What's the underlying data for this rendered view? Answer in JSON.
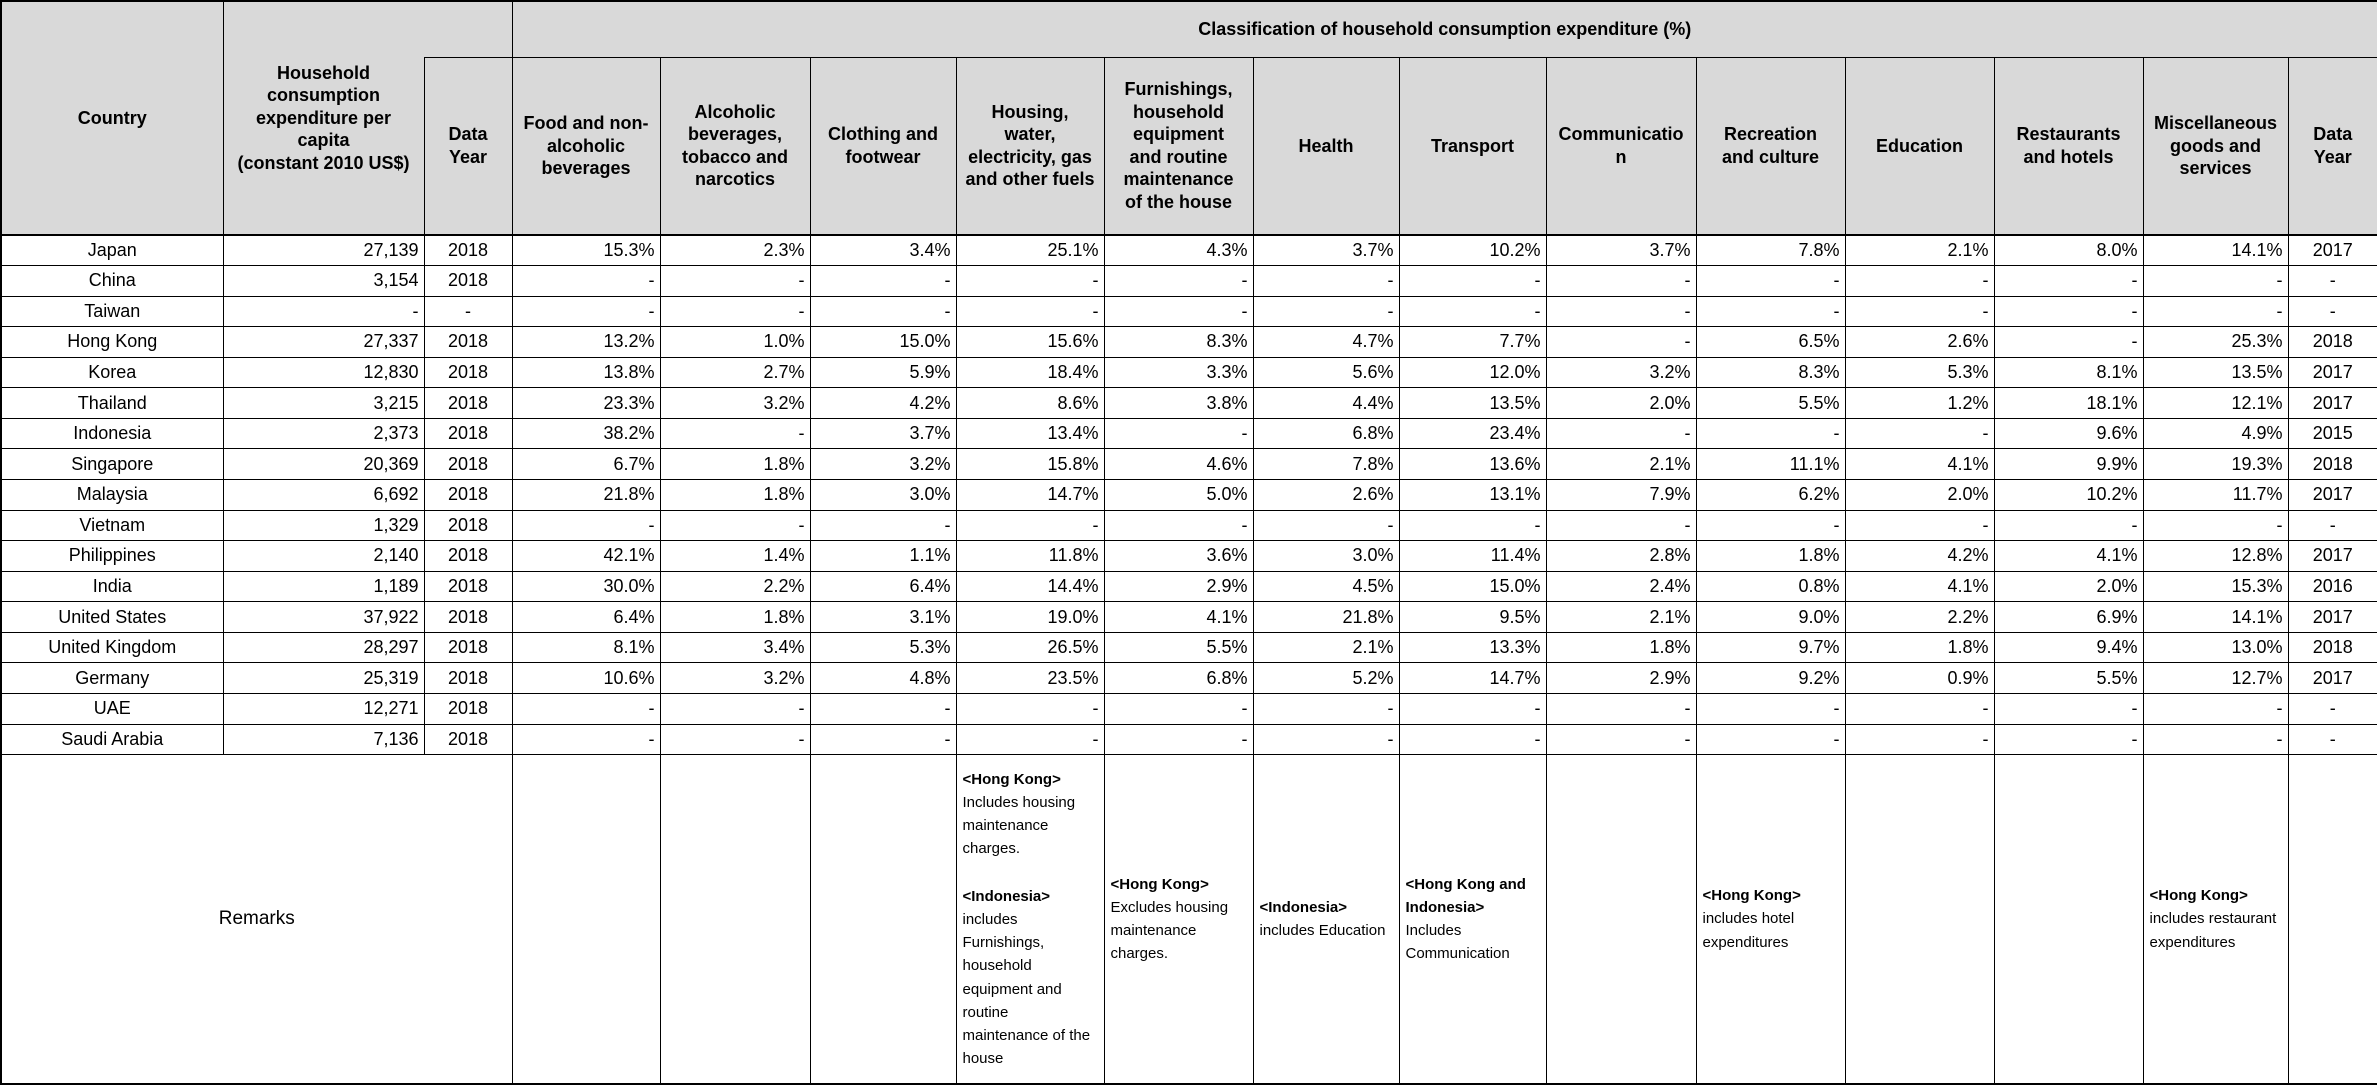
{
  "header": {
    "group_title": "Classification of household consumption expenditure  (%)",
    "country": "Country",
    "hce": "Household\nconsumption\nexpenditure per\ncapita\n(constant 2010 US$)",
    "data_year_first": "Data\nYear",
    "categories": [
      "Food and non-\nalcoholic\nbeverages",
      "Alcoholic\nbeverages,\ntobacco and\nnarcotics",
      "Clothing and\nfootwear",
      "Housing,\nwater,\nelectricity, gas\nand other fuels",
      "Furnishings,\nhousehold\nequipment\nand routine\nmaintenance\nof the house",
      "Health",
      "Transport",
      "Communicatio\nn",
      "Recreation\nand culture",
      "Education",
      "Restaurants\nand hotels",
      "Miscellaneous\ngoods and\nservices"
    ],
    "data_year_last": "Data\nYear"
  },
  "rows": [
    {
      "country": "Japan",
      "hce": "27,139",
      "year1": "2018",
      "values": [
        "15.3%",
        "2.3%",
        "3.4%",
        "25.1%",
        "4.3%",
        "3.7%",
        "10.2%",
        "3.7%",
        "7.8%",
        "2.1%",
        "8.0%",
        "14.1%"
      ],
      "year2": "2017"
    },
    {
      "country": "China",
      "hce": "3,154",
      "year1": "2018",
      "values": [
        "-",
        "-",
        "-",
        "-",
        "-",
        "-",
        "-",
        "-",
        "-",
        "-",
        "-",
        "-"
      ],
      "year2": "-"
    },
    {
      "country": "Taiwan",
      "hce": "-",
      "year1": "-",
      "values": [
        "-",
        "-",
        "-",
        "-",
        "-",
        "-",
        "-",
        "-",
        "-",
        "-",
        "-",
        "-"
      ],
      "year2": "-"
    },
    {
      "country": "Hong Kong",
      "hce": "27,337",
      "year1": "2018",
      "values": [
        "13.2%",
        "1.0%",
        "15.0%",
        "15.6%",
        "8.3%",
        "4.7%",
        "7.7%",
        "-",
        "6.5%",
        "2.6%",
        "-",
        "25.3%"
      ],
      "year2": "2018"
    },
    {
      "country": "Korea",
      "hce": "12,830",
      "year1": "2018",
      "values": [
        "13.8%",
        "2.7%",
        "5.9%",
        "18.4%",
        "3.3%",
        "5.6%",
        "12.0%",
        "3.2%",
        "8.3%",
        "5.3%",
        "8.1%",
        "13.5%"
      ],
      "year2": "2017"
    },
    {
      "country": "Thailand",
      "hce": "3,215",
      "year1": "2018",
      "values": [
        "23.3%",
        "3.2%",
        "4.2%",
        "8.6%",
        "3.8%",
        "4.4%",
        "13.5%",
        "2.0%",
        "5.5%",
        "1.2%",
        "18.1%",
        "12.1%"
      ],
      "year2": "2017"
    },
    {
      "country": "Indonesia",
      "hce": "2,373",
      "year1": "2018",
      "values": [
        "38.2%",
        "-",
        "3.7%",
        "13.4%",
        "-",
        "6.8%",
        "23.4%",
        "-",
        "-",
        "-",
        "9.6%",
        "4.9%"
      ],
      "year2": "2015"
    },
    {
      "country": "Singapore",
      "hce": "20,369",
      "year1": "2018",
      "values": [
        "6.7%",
        "1.8%",
        "3.2%",
        "15.8%",
        "4.6%",
        "7.8%",
        "13.6%",
        "2.1%",
        "11.1%",
        "4.1%",
        "9.9%",
        "19.3%"
      ],
      "year2": "2018"
    },
    {
      "country": "Malaysia",
      "hce": "6,692",
      "year1": "2018",
      "values": [
        "21.8%",
        "1.8%",
        "3.0%",
        "14.7%",
        "5.0%",
        "2.6%",
        "13.1%",
        "7.9%",
        "6.2%",
        "2.0%",
        "10.2%",
        "11.7%"
      ],
      "year2": "2017"
    },
    {
      "country": "Vietnam",
      "hce": "1,329",
      "year1": "2018",
      "values": [
        "-",
        "-",
        "-",
        "-",
        "-",
        "-",
        "-",
        "-",
        "-",
        "-",
        "-",
        "-"
      ],
      "year2": "-"
    },
    {
      "country": "Philippines",
      "hce": "2,140",
      "year1": "2018",
      "values": [
        "42.1%",
        "1.4%",
        "1.1%",
        "11.8%",
        "3.6%",
        "3.0%",
        "11.4%",
        "2.8%",
        "1.8%",
        "4.2%",
        "4.1%",
        "12.8%"
      ],
      "year2": "2017"
    },
    {
      "country": "India",
      "hce": "1,189",
      "year1": "2018",
      "values": [
        "30.0%",
        "2.2%",
        "6.4%",
        "14.4%",
        "2.9%",
        "4.5%",
        "15.0%",
        "2.4%",
        "0.8%",
        "4.1%",
        "2.0%",
        "15.3%"
      ],
      "year2": "2016"
    },
    {
      "country": "United States",
      "hce": "37,922",
      "year1": "2018",
      "values": [
        "6.4%",
        "1.8%",
        "3.1%",
        "19.0%",
        "4.1%",
        "21.8%",
        "9.5%",
        "2.1%",
        "9.0%",
        "2.2%",
        "6.9%",
        "14.1%"
      ],
      "year2": "2017"
    },
    {
      "country": "United Kingdom",
      "hce": "28,297",
      "year1": "2018",
      "values": [
        "8.1%",
        "3.4%",
        "5.3%",
        "26.5%",
        "5.5%",
        "2.1%",
        "13.3%",
        "1.8%",
        "9.7%",
        "1.8%",
        "9.4%",
        "13.0%"
      ],
      "year2": "2018"
    },
    {
      "country": "Germany",
      "hce": "25,319",
      "year1": "2018",
      "values": [
        "10.6%",
        "3.2%",
        "4.8%",
        "23.5%",
        "6.8%",
        "5.2%",
        "14.7%",
        "2.9%",
        "9.2%",
        "0.9%",
        "5.5%",
        "12.7%"
      ],
      "year2": "2017"
    },
    {
      "country": "UAE",
      "hce": "12,271",
      "year1": "2018",
      "values": [
        "-",
        "-",
        "-",
        "-",
        "-",
        "-",
        "-",
        "-",
        "-",
        "-",
        "-",
        "-"
      ],
      "year2": "-"
    },
    {
      "country": "Saudi Arabia",
      "hce": "7,136",
      "year1": "2018",
      "values": [
        "-",
        "-",
        "-",
        "-",
        "-",
        "-",
        "-",
        "-",
        "-",
        "-",
        "-",
        "-"
      ],
      "year2": "-"
    }
  ],
  "remarks": {
    "label": "Remarks",
    "cells": [
      [],
      [],
      [],
      [
        {
          "tag": "<Hong Kong>",
          "text": "Includes housing maintenance charges."
        },
        {
          "tag": "<Indonesia>",
          "text": "includes Furnishings, household equipment and routine maintenance of the house"
        }
      ],
      [
        {
          "tag": "<Hong Kong>",
          "text": "Excludes housing maintenance charges."
        }
      ],
      [
        {
          "tag": "<Indonesia>",
          "text": "includes Education"
        }
      ],
      [
        {
          "tag": "<Hong Kong and Indonesia>",
          "text": "Includes Communication"
        }
      ],
      [],
      [
        {
          "tag": "<Hong Kong>",
          "text": "includes hotel expenditures"
        }
      ],
      [],
      [],
      [
        {
          "tag": "<Hong Kong>",
          "text": "includes restaurant expenditures"
        }
      ],
      []
    ]
  },
  "colors": {
    "header_bg": "#d9d9d9",
    "border": "#000000",
    "body_bg": "#ffffff"
  }
}
